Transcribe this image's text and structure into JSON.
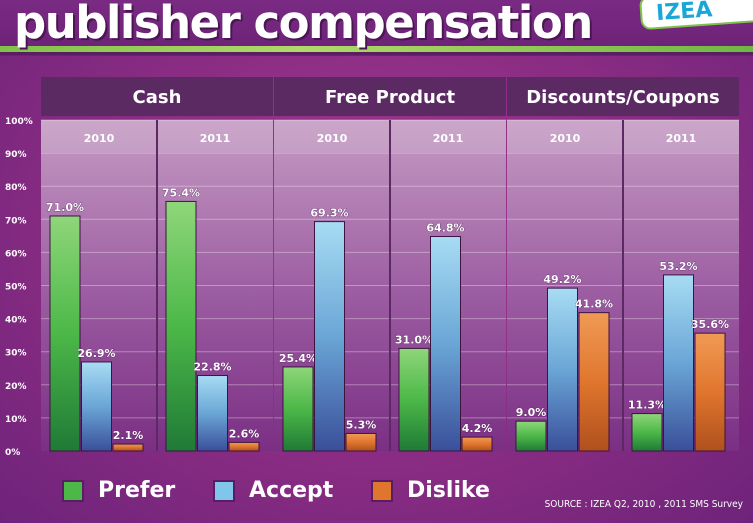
{
  "title": "publisher compensation",
  "logo_text": "IZEA",
  "source": "SOURCE : IZEA Q2, 2010 , 2011 SMS Survey",
  "colors": {
    "prefer": "#4cb848",
    "accept": "#7fc6ea",
    "dislike": "#e0762e"
  },
  "legend": [
    {
      "label": "Prefer",
      "key": "prefer"
    },
    {
      "label": "Accept",
      "key": "accept"
    },
    {
      "label": "Dislike",
      "key": "dislike"
    }
  ],
  "chart_data": {
    "type": "bar",
    "ylim": [
      0,
      100
    ],
    "yticks": [
      "0%",
      "10%",
      "20%",
      "30%",
      "40%",
      "50%",
      "60%",
      "70%",
      "80%",
      "90%",
      "100%"
    ],
    "series_names": [
      "Prefer",
      "Accept",
      "Dislike"
    ],
    "groups": [
      {
        "name": "Cash",
        "years": [
          {
            "year": "2010",
            "values": [
              71.0,
              26.9,
              2.1
            ],
            "labels": [
              "71.0%",
              "26.9%",
              "2.1%"
            ]
          },
          {
            "year": "2011",
            "values": [
              75.4,
              22.8,
              2.6
            ],
            "labels": [
              "75.4%",
              "22.8%",
              "2.6%"
            ]
          }
        ]
      },
      {
        "name": "Free Product",
        "years": [
          {
            "year": "2010",
            "values": [
              25.4,
              69.3,
              5.3
            ],
            "labels": [
              "25.4%",
              "69.3%",
              "5.3%"
            ]
          },
          {
            "year": "2011",
            "values": [
              31.0,
              64.8,
              4.2
            ],
            "labels": [
              "31.0%",
              "64.8%",
              "4.2%"
            ]
          }
        ]
      },
      {
        "name": "Discounts/Coupons",
        "years": [
          {
            "year": "2010",
            "values": [
              9.0,
              49.2,
              41.8
            ],
            "labels": [
              "9.0%",
              "49.2%",
              "41.8%"
            ]
          },
          {
            "year": "2011",
            "values": [
              11.3,
              53.2,
              35.6
            ],
            "labels": [
              "11.3%",
              "53.2%",
              "35.6%"
            ]
          }
        ]
      }
    ]
  }
}
